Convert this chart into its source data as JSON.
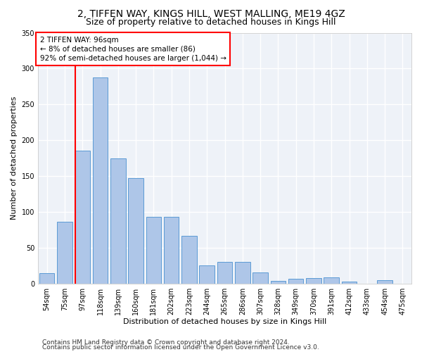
{
  "title": "2, TIFFEN WAY, KINGS HILL, WEST MALLING, ME19 4GZ",
  "subtitle": "Size of property relative to detached houses in Kings Hill",
  "xlabel": "Distribution of detached houses by size in Kings Hill",
  "ylabel": "Number of detached properties",
  "categories": [
    "54sqm",
    "75sqm",
    "97sqm",
    "118sqm",
    "139sqm",
    "160sqm",
    "181sqm",
    "202sqm",
    "223sqm",
    "244sqm",
    "265sqm",
    "286sqm",
    "307sqm",
    "328sqm",
    "349sqm",
    "370sqm",
    "391sqm",
    "412sqm",
    "433sqm",
    "454sqm",
    "475sqm"
  ],
  "values": [
    14,
    86,
    185,
    288,
    175,
    147,
    93,
    93,
    67,
    25,
    30,
    30,
    15,
    4,
    7,
    8,
    9,
    3,
    0,
    5,
    0
  ],
  "bar_color": "#aec6e8",
  "bar_edge_color": "#5b9bd5",
  "vline_index": 2,
  "annotation_text": "2 TIFFEN WAY: 96sqm\n← 8% of detached houses are smaller (86)\n92% of semi-detached houses are larger (1,044) →",
  "annotation_box_color": "white",
  "annotation_box_edge_color": "red",
  "vline_color": "red",
  "ylim": [
    0,
    350
  ],
  "yticks": [
    0,
    50,
    100,
    150,
    200,
    250,
    300,
    350
  ],
  "footer_line1": "Contains HM Land Registry data © Crown copyright and database right 2024.",
  "footer_line2": "Contains public sector information licensed under the Open Government Licence v3.0.",
  "bg_color": "#eef2f8",
  "grid_color": "white",
  "title_fontsize": 10,
  "subtitle_fontsize": 9,
  "xlabel_fontsize": 8,
  "ylabel_fontsize": 8,
  "tick_fontsize": 7,
  "annotation_fontsize": 7.5,
  "footer_fontsize": 6.5
}
